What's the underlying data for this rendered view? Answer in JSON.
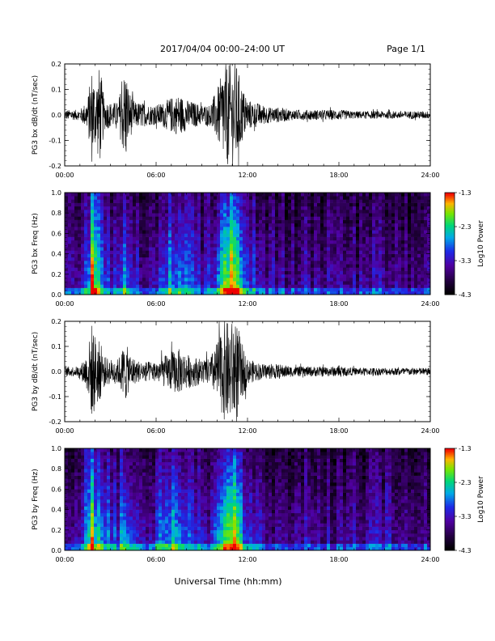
{
  "header": {
    "title": "2017/04/04  00:00–24:00 UT",
    "page": "Page 1/1"
  },
  "footer": {
    "xlabel": "Universal Time (hh:mm)"
  },
  "colors": {
    "trace": "#000000",
    "frame": "#000000",
    "background": "#ffffff"
  },
  "chart_data": [
    {
      "type": "line",
      "ylabel": "PG3 bx dB/dt (nT/sec)",
      "xlim": [
        "00:00",
        "24:00"
      ],
      "ylim": [
        -0.2,
        0.2
      ],
      "x_ticks": [
        "00:00",
        "06:00",
        "12:00",
        "18:00",
        "24:00"
      ],
      "y_ticks": [
        "-0.2",
        "-0.1",
        "0.0",
        "0.1",
        "0.2"
      ],
      "envelope": {
        "hours": [
          0,
          1,
          1.5,
          1.8,
          2.0,
          2.3,
          2.6,
          3,
          3.5,
          4.0,
          4.2,
          4.6,
          5.0,
          5.5,
          6.0,
          6.5,
          7.0,
          7.5,
          8.0,
          8.5,
          9.0,
          9.5,
          10.0,
          10.5,
          10.8,
          11.0,
          11.3,
          11.6,
          12.0,
          12.5,
          13.0,
          13.5,
          14.0,
          15.0,
          16.0,
          17.0,
          18.0,
          19.0,
          20.0,
          21.0,
          22.0,
          23.0,
          24.0
        ],
        "amplitude": [
          0.02,
          0.02,
          0.06,
          0.2,
          0.12,
          0.2,
          0.06,
          0.05,
          0.05,
          0.2,
          0.1,
          0.05,
          0.05,
          0.04,
          0.04,
          0.05,
          0.07,
          0.08,
          0.06,
          0.05,
          0.04,
          0.04,
          0.1,
          0.2,
          0.2,
          0.2,
          0.2,
          0.12,
          0.06,
          0.05,
          0.04,
          0.03,
          0.03,
          0.02,
          0.02,
          0.02,
          0.02,
          0.015,
          0.015,
          0.015,
          0.015,
          0.015,
          0.015
        ]
      }
    },
    {
      "type": "heatmap",
      "ylabel": "PG3 bx Freq (Hz)",
      "xlim": [
        "00:00",
        "24:00"
      ],
      "ylim": [
        0,
        1.0
      ],
      "x_ticks": [
        "00:00",
        "06:00",
        "12:00",
        "18:00",
        "24:00"
      ],
      "y_ticks": [
        "0.0",
        "0.2",
        "0.4",
        "0.6",
        "0.8",
        "1.0"
      ],
      "colorbar": {
        "label": "Log10 Power",
        "ticks": [
          "-1.3",
          "-2.3",
          "-3.3",
          "-4.3"
        ],
        "range": [
          -4.3,
          -1.3
        ]
      },
      "activity": {
        "hours": [
          0,
          1,
          1.5,
          1.8,
          2.0,
          2.3,
          2.6,
          3,
          3.5,
          4.0,
          4.2,
          4.6,
          5.0,
          5.5,
          6.0,
          6.5,
          7.0,
          7.5,
          8.0,
          8.5,
          9.0,
          9.5,
          10.0,
          10.5,
          10.8,
          11.0,
          11.3,
          11.6,
          12.0,
          12.5,
          13.0,
          13.5,
          14.0,
          15.0,
          16.0,
          17.0,
          18.0,
          19.0,
          20.0,
          21.0,
          22.0,
          23.0,
          24.0
        ],
        "level": [
          0.25,
          0.3,
          0.5,
          0.95,
          0.7,
          0.6,
          0.45,
          0.4,
          0.4,
          0.7,
          0.5,
          0.4,
          0.35,
          0.3,
          0.35,
          0.45,
          0.6,
          0.55,
          0.45,
          0.4,
          0.35,
          0.35,
          0.55,
          0.8,
          0.9,
          0.95,
          0.9,
          0.6,
          0.45,
          0.4,
          0.35,
          0.3,
          0.3,
          0.25,
          0.3,
          0.25,
          0.2,
          0.25,
          0.3,
          0.25,
          0.3,
          0.25,
          0.25
        ]
      }
    },
    {
      "type": "line",
      "ylabel": "PG3 by dB/dt (nT/sec)",
      "xlim": [
        "00:00",
        "24:00"
      ],
      "ylim": [
        -0.2,
        0.2
      ],
      "x_ticks": [
        "00:00",
        "06:00",
        "12:00",
        "18:00",
        "24:00"
      ],
      "y_ticks": [
        "-0.2",
        "-0.1",
        "0.0",
        "0.1",
        "0.2"
      ],
      "envelope": {
        "hours": [
          0,
          1,
          1.5,
          1.8,
          2.0,
          2.3,
          2.6,
          3,
          3.5,
          4.0,
          4.2,
          4.6,
          5.0,
          5.5,
          6.0,
          6.5,
          7.0,
          7.5,
          8.0,
          8.5,
          9.0,
          9.5,
          10.0,
          10.5,
          10.8,
          11.0,
          11.3,
          11.6,
          12.0,
          12.5,
          13.0,
          13.5,
          14.0,
          15.0,
          16.0,
          17.0,
          18.0,
          19.0,
          20.0,
          21.0,
          22.0,
          23.0,
          24.0
        ],
        "amplitude": [
          0.02,
          0.02,
          0.08,
          0.2,
          0.15,
          0.12,
          0.06,
          0.05,
          0.05,
          0.12,
          0.08,
          0.05,
          0.04,
          0.04,
          0.04,
          0.06,
          0.08,
          0.09,
          0.07,
          0.06,
          0.05,
          0.05,
          0.12,
          0.2,
          0.2,
          0.2,
          0.2,
          0.12,
          0.05,
          0.04,
          0.03,
          0.03,
          0.03,
          0.02,
          0.02,
          0.02,
          0.02,
          0.015,
          0.015,
          0.015,
          0.015,
          0.015,
          0.015
        ]
      }
    },
    {
      "type": "heatmap",
      "ylabel": "PG3 by Freq (Hz)",
      "xlim": [
        "00:00",
        "24:00"
      ],
      "ylim": [
        0,
        1.0
      ],
      "x_ticks": [
        "00:00",
        "06:00",
        "12:00",
        "18:00",
        "24:00"
      ],
      "y_ticks": [
        "0.0",
        "0.2",
        "0.4",
        "0.6",
        "0.8",
        "1.0"
      ],
      "colorbar": {
        "label": "Log10 Power",
        "ticks": [
          "-1.3",
          "-2.3",
          "-3.3",
          "-4.3"
        ],
        "range": [
          -4.3,
          -1.3
        ]
      },
      "activity": {
        "hours": [
          0,
          1,
          1.5,
          1.8,
          2.0,
          2.3,
          2.6,
          3,
          3.5,
          4.0,
          4.2,
          4.6,
          5.0,
          5.5,
          6.0,
          6.5,
          7.0,
          7.5,
          8.0,
          8.5,
          9.0,
          9.5,
          10.0,
          10.5,
          10.8,
          11.0,
          11.3,
          11.6,
          12.0,
          12.5,
          13.0,
          13.5,
          14.0,
          15.0,
          16.0,
          17.0,
          18.0,
          19.0,
          20.0,
          21.0,
          22.0,
          23.0,
          24.0
        ],
        "level": [
          0.3,
          0.35,
          0.55,
          0.95,
          0.75,
          0.65,
          0.5,
          0.45,
          0.45,
          0.7,
          0.55,
          0.45,
          0.4,
          0.35,
          0.4,
          0.5,
          0.65,
          0.6,
          0.5,
          0.45,
          0.4,
          0.4,
          0.6,
          0.85,
          0.9,
          0.95,
          0.95,
          0.6,
          0.45,
          0.4,
          0.35,
          0.3,
          0.3,
          0.3,
          0.3,
          0.25,
          0.25,
          0.3,
          0.3,
          0.3,
          0.3,
          0.25,
          0.25
        ]
      }
    }
  ]
}
